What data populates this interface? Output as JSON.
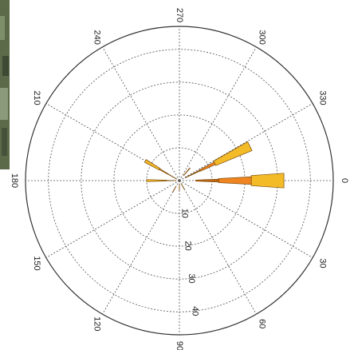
{
  "chart_data": {
    "type": "polar-bar",
    "angle_ticks": [
      "0",
      "30",
      "60",
      "90",
      "120",
      "150",
      "180",
      "210",
      "240",
      "270",
      "300",
      "330"
    ],
    "radial_ticks": [
      "10",
      "20",
      "30",
      "40"
    ],
    "rmax": 47,
    "grid": true,
    "colors": {
      "yellow": "#f3bb28",
      "orange": "#ef8421",
      "dark": "#c16512",
      "edge": "#7a4a08",
      "grid": "#555555"
    },
    "bars": [
      {
        "angle": 0,
        "r_inner": 22,
        "r_outer": 32,
        "width": 4,
        "color": "yellow"
      },
      {
        "angle": 0,
        "r_inner": 12,
        "r_outer": 22,
        "width": 3,
        "color": "orange"
      },
      {
        "angle": 0,
        "r_inner": 5,
        "r_outer": 12,
        "width": 2,
        "color": "dark"
      },
      {
        "angle": 334,
        "r_inner": 12,
        "r_outer": 24,
        "width": 3.6,
        "color": "yellow"
      },
      {
        "angle": 334,
        "r_inner": 7,
        "r_outer": 12,
        "width": 2,
        "color": "orange"
      },
      {
        "angle": 334,
        "r_inner": 2,
        "r_outer": 7,
        "width": 1.3,
        "color": "dark"
      },
      {
        "angle": 310,
        "r_inner": 2,
        "r_outer": 5,
        "width": 0.9,
        "color": "yellow"
      },
      {
        "angle": 210,
        "r_inner": 7,
        "r_outer": 12,
        "width": 2.3,
        "color": "yellow"
      },
      {
        "angle": 210,
        "r_inner": 4,
        "r_outer": 7,
        "width": 1.3,
        "color": "orange"
      },
      {
        "angle": 210,
        "r_inner": 1,
        "r_outer": 4,
        "width": 0.7,
        "color": "dark"
      },
      {
        "angle": 180,
        "r_inner": 4,
        "r_outer": 10,
        "width": 1.8,
        "color": "yellow"
      },
      {
        "angle": 180,
        "r_inner": 1,
        "r_outer": 4,
        "width": 0.8,
        "color": "dark"
      },
      {
        "angle": 120,
        "r_inner": 2,
        "r_outer": 4,
        "width": 0.7,
        "color": "yellow"
      },
      {
        "angle": 60,
        "r_inner": 1,
        "r_outer": 3,
        "width": 0.6,
        "color": "yellow"
      },
      {
        "angle": 90,
        "r_inner": 1,
        "r_outer": 3,
        "width": 0.5,
        "color": "dark"
      }
    ]
  }
}
